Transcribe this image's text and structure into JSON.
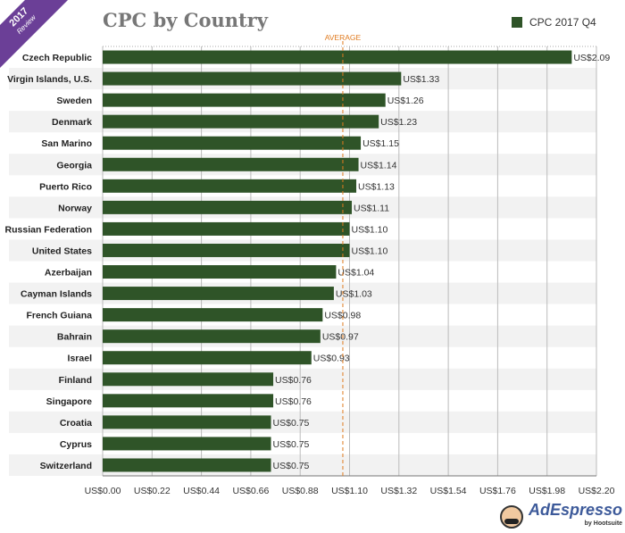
{
  "badge": {
    "year": "2017",
    "label": "Review"
  },
  "chart_data": {
    "type": "bar",
    "orientation": "horizontal",
    "title": "CPC by Country",
    "legend_position": "top-right",
    "series": [
      {
        "name": "CPC 2017 Q4",
        "color": "#2f5428",
        "values": [
          2.09,
          1.33,
          1.26,
          1.23,
          1.15,
          1.14,
          1.13,
          1.11,
          1.1,
          1.1,
          1.04,
          1.03,
          0.98,
          0.97,
          0.93,
          0.76,
          0.76,
          0.75,
          0.75,
          0.75
        ]
      }
    ],
    "categories": [
      "Czech Republic",
      "Virgin Islands, U.S.",
      "Sweden",
      "Denmark",
      "San Marino",
      "Georgia",
      "Puerto Rico",
      "Norway",
      "Russian Federation",
      "United States",
      "Azerbaijan",
      "Cayman Islands",
      "French Guiana",
      "Bahrain",
      "Israel",
      "Finland",
      "Singapore",
      "Croatia",
      "Cyprus",
      "Switzerland"
    ],
    "data_labels": [
      "US$2.09",
      "US$1.33",
      "US$1.26",
      "US$1.23",
      "US$1.15",
      "US$1.14",
      "US$1.13",
      "US$1.11",
      "US$1.10",
      "US$1.10",
      "US$1.04",
      "US$1.03",
      "US$0.98",
      "US$0.97",
      "US$0.93",
      "US$0.76",
      "US$0.76",
      "US$0.75",
      "US$0.75",
      "US$0.75"
    ],
    "xlim": [
      0,
      2.2
    ],
    "xticks": [
      0,
      0.22,
      0.44,
      0.66,
      0.88,
      1.1,
      1.32,
      1.54,
      1.76,
      1.98,
      2.2
    ],
    "xtick_labels": [
      "US$0.00",
      "US$0.22",
      "US$0.44",
      "US$0.66",
      "US$0.88",
      "US$1.10",
      "US$1.32",
      "US$1.54",
      "US$1.76",
      "US$1.98",
      "US$2.20"
    ],
    "average": {
      "label": "AVERAGE",
      "value": 1.07,
      "color": "#e07b20"
    },
    "grid": true
  },
  "logo": {
    "name": "AdEspresso",
    "by": "by Hootsuite"
  }
}
